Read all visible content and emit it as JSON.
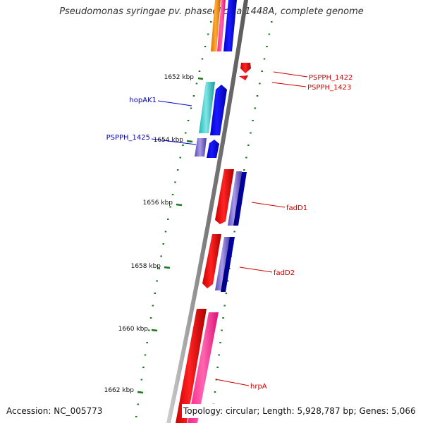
{
  "title": "Pseudomonas syringae pv. phaseolicola 1448A, complete genome",
  "accession": "Accession: NC_005773",
  "summary": "Topology: circular; Length: 5,928,787 bp; Genes: 5,066",
  "ticks": [
    {
      "label": "1652 kbp"
    },
    {
      "label": "1654 kbp"
    },
    {
      "label": "1656 kbp"
    },
    {
      "label": "1658 kbp"
    },
    {
      "label": "1660 kbp"
    },
    {
      "label": "1662 kbp"
    }
  ],
  "genes": [
    {
      "name": "hopAK1",
      "color": "#0000aa"
    },
    {
      "name": "PSPPH_1425",
      "color": "#0000aa"
    },
    {
      "name": "PSPPH_1422",
      "color": "#cc0000"
    },
    {
      "name": "PSPPH_1423",
      "color": "#cc0000"
    },
    {
      "name": "fadD1",
      "color": "#cc0000"
    },
    {
      "name": "fadD2",
      "color": "#cc0000"
    },
    {
      "name": "hrpA",
      "color": "#cc0000"
    }
  ],
  "colors": {
    "backbone": "#888888",
    "tick": "#1a7a1a",
    "forward_cds": "#0000ee",
    "reverse_cds": "#ee0000",
    "cyan": "#20c0c0",
    "pink": "#ff3399",
    "violet": "#7766cc",
    "orange": "#ff8800"
  }
}
